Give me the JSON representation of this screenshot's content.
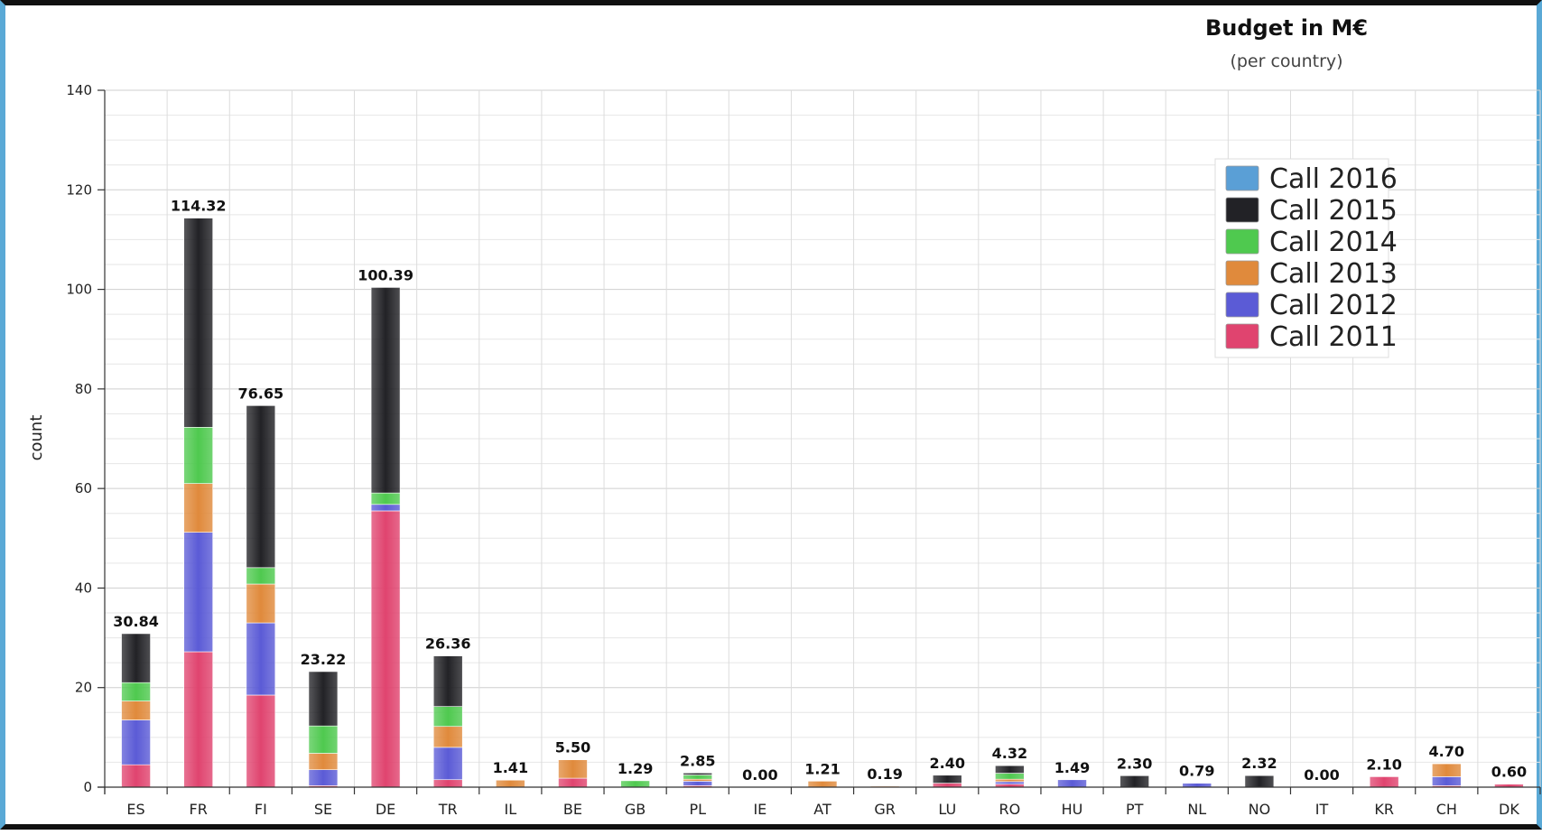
{
  "chart_data": {
    "type": "bar",
    "stacked": true,
    "title": "Budget in M€",
    "subtitle": "(per country)",
    "xlabel": "",
    "ylabel": "count",
    "ylim": [
      0,
      140
    ],
    "yticks": [
      0,
      20,
      40,
      60,
      80,
      100,
      120,
      140
    ],
    "grid": true,
    "legend_position": "top-right",
    "categories": [
      "ES",
      "FR",
      "FI",
      "SE",
      "DE",
      "TR",
      "IL",
      "BE",
      "GB",
      "PL",
      "IE",
      "AT",
      "GR",
      "LU",
      "RO",
      "HU",
      "PT",
      "NL",
      "NO",
      "IT",
      "KR",
      "CH",
      "DK"
    ],
    "totals": [
      "30.84",
      "114.32",
      "76.65",
      "23.22",
      "100.39",
      "26.36",
      "1.41",
      "5.50",
      "1.29",
      "2.85",
      "0.00",
      "1.21",
      "0.19",
      "2.40",
      "4.32",
      "1.49",
      "2.30",
      "0.79",
      "2.32",
      "0.00",
      "2.10",
      "4.70",
      "0.60"
    ],
    "series": [
      {
        "name": "Call 2011",
        "color": "#e0446f",
        "values": [
          4.5,
          27.2,
          18.5,
          0.3,
          55.5,
          1.5,
          0.0,
          1.8,
          0.0,
          0.3,
          0.0,
          0.0,
          0.0,
          0.8,
          0.6,
          0.0,
          0.0,
          0.0,
          0.0,
          0.0,
          2.1,
          0.3,
          0.6
        ]
      },
      {
        "name": "Call 2012",
        "color": "#5b5bd6",
        "values": [
          9.0,
          24.0,
          14.5,
          3.2,
          1.3,
          6.5,
          0.0,
          0.0,
          0.0,
          0.9,
          0.0,
          0.0,
          0.0,
          0.0,
          0.5,
          1.49,
          0.0,
          0.79,
          0.0,
          0.0,
          0.0,
          1.8,
          0.0
        ]
      },
      {
        "name": "Call 2013",
        "color": "#e08a3c",
        "values": [
          3.8,
          9.8,
          7.8,
          3.3,
          0.0,
          4.2,
          1.41,
          3.7,
          0.0,
          0.4,
          0.0,
          1.21,
          0.19,
          0.0,
          0.5,
          0.0,
          0.0,
          0.0,
          0.0,
          0.0,
          0.0,
          2.6,
          0.0
        ]
      },
      {
        "name": "Call 2014",
        "color": "#4fc94f",
        "values": [
          3.7,
          11.3,
          3.3,
          5.5,
          2.3,
          4.0,
          0.0,
          0.0,
          1.29,
          0.85,
          0.0,
          0.0,
          0.0,
          0.0,
          1.2,
          0.0,
          0.0,
          0.0,
          0.0,
          0.0,
          0.0,
          0.0,
          0.0
        ]
      },
      {
        "name": "Call 2015",
        "color": "#222226",
        "values": [
          9.84,
          42.02,
          32.55,
          10.92,
          41.29,
          10.16,
          0.0,
          0.0,
          0.0,
          0.4,
          0.0,
          0.0,
          0.0,
          1.6,
          1.52,
          0.0,
          2.3,
          0.0,
          2.32,
          0.0,
          0.0,
          0.0,
          0.0
        ]
      },
      {
        "name": "Call 2016",
        "color": "#5a9fd6",
        "values": [
          0,
          0,
          0,
          0,
          0,
          0,
          0,
          0,
          0,
          0,
          0,
          0,
          0,
          0,
          0,
          0,
          0,
          0,
          0,
          0,
          0,
          0,
          0
        ]
      }
    ],
    "legend_order": [
      "Call 2016",
      "Call 2015",
      "Call 2014",
      "Call 2013",
      "Call 2012",
      "Call 2011"
    ]
  }
}
